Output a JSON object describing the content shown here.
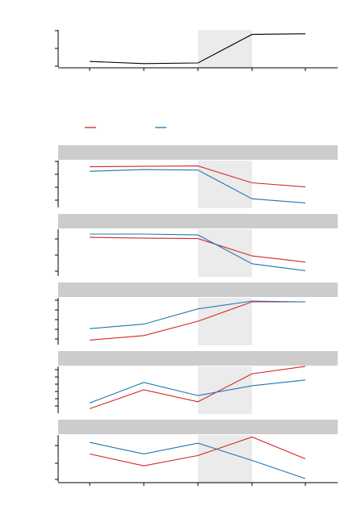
{
  "chart_data": [
    {
      "type": "line",
      "panel": "top",
      "x": [
        1,
        2,
        3,
        4,
        5
      ],
      "shaded_x_range": [
        3,
        4
      ],
      "ylim": [
        0,
        1
      ],
      "grid": false,
      "series": [
        {
          "color": "#000000",
          "values": [
            0.1,
            0.03,
            0.05,
            0.96,
            0.98
          ]
        }
      ]
    },
    {
      "type": "line",
      "panel": "facet-1",
      "x": [
        1,
        2,
        3,
        4,
        5
      ],
      "shaded_x_range": [
        3,
        4
      ],
      "ylim": [
        0,
        1
      ],
      "grid": false,
      "series": [
        {
          "color": "#d62728",
          "values": [
            0.93,
            0.94,
            0.95,
            0.54,
            0.44
          ]
        },
        {
          "color": "#1f77b4",
          "values": [
            0.82,
            0.86,
            0.85,
            0.15,
            0.05
          ]
        }
      ]
    },
    {
      "type": "line",
      "panel": "facet-2",
      "x": [
        1,
        2,
        3,
        4,
        5
      ],
      "shaded_x_range": [
        3,
        4
      ],
      "ylim": [
        0,
        1
      ],
      "grid": false,
      "series": [
        {
          "color": "#d62728",
          "values": [
            0.88,
            0.86,
            0.85,
            0.43,
            0.28
          ]
        },
        {
          "color": "#1f77b4",
          "values": [
            0.96,
            0.96,
            0.94,
            0.24,
            0.07
          ]
        }
      ]
    },
    {
      "type": "line",
      "panel": "facet-3",
      "x": [
        1,
        2,
        3,
        4,
        5
      ],
      "shaded_x_range": [
        3,
        4
      ],
      "ylim": [
        0,
        1
      ],
      "grid": false,
      "series": [
        {
          "color": "#d62728",
          "values": [
            0.05,
            0.16,
            0.51,
            0.98,
            0.98
          ]
        },
        {
          "color": "#1f77b4",
          "values": [
            0.33,
            0.44,
            0.81,
            1.0,
            0.98
          ]
        }
      ]
    },
    {
      "type": "line",
      "panel": "facet-4",
      "x": [
        1,
        2,
        3,
        4,
        5
      ],
      "shaded_x_range": [
        3,
        4
      ],
      "ylim": [
        0,
        1
      ],
      "grid": false,
      "series": [
        {
          "color": "#d62728",
          "values": [
            0.05,
            0.51,
            0.22,
            0.9,
            1.08
          ]
        },
        {
          "color": "#1f77b4",
          "values": [
            0.19,
            0.69,
            0.37,
            0.61,
            0.75
          ]
        }
      ]
    },
    {
      "type": "line",
      "panel": "facet-5",
      "x": [
        1,
        2,
        3,
        4,
        5
      ],
      "shaded_x_range": [
        3,
        4
      ],
      "ylim": [
        0,
        1
      ],
      "grid": false,
      "series": [
        {
          "color": "#d62728",
          "values": [
            0.62,
            0.33,
            0.58,
            1.03,
            0.5
          ]
        },
        {
          "color": "#1f77b4",
          "values": [
            0.9,
            0.62,
            0.88,
            0.46,
            0.02
          ]
        }
      ]
    }
  ],
  "legend": {
    "entries": [
      {
        "color": "#d62728",
        "label": ""
      },
      {
        "color": "#1f77b4",
        "label": ""
      }
    ]
  }
}
